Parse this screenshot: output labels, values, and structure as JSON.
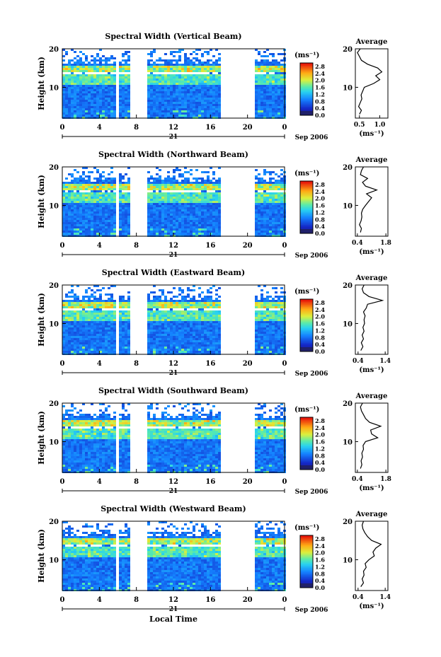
{
  "chart_data": {
    "type": "heatmap",
    "xlabel": "Local Time",
    "date_label": "Sep 2006",
    "day_label": "21",
    "x_ticks": [
      "0",
      "4",
      "8",
      "12",
      "16",
      "20",
      "0"
    ],
    "xlim": [
      0,
      24
    ],
    "ylabel": "Height (km)",
    "ylim": [
      2,
      20
    ],
    "y_ticks": [
      "20",
      "10"
    ],
    "colorbar": {
      "unit": "(ms⁻¹)",
      "ticks": [
        "2.8",
        "2.4",
        "2.0",
        "1.6",
        "1.2",
        "0.8",
        "0.4",
        "0.0"
      ],
      "range": [
        0.0,
        3.0
      ]
    },
    "data_gaps_hours": [
      [
        5.8,
        6.2
      ],
      [
        7.3,
        9.3
      ],
      [
        17.0,
        20.7
      ]
    ],
    "average_title": "Average",
    "average_unit": "(ms⁻¹)",
    "panels": [
      {
        "title": "Spectral Width (Vertical Beam)",
        "avg_xticks": [
          "0.5",
          "1.0"
        ],
        "avg_xlim": [
          0.4,
          1.2
        ],
        "avg_profile": {
          "height": [
            3,
            4,
            5,
            6,
            7,
            8,
            9,
            10,
            11,
            12,
            13,
            14,
            15,
            16,
            17,
            18,
            19,
            20
          ],
          "value": [
            0.5,
            0.55,
            0.48,
            0.52,
            0.56,
            0.54,
            0.58,
            0.62,
            0.85,
            1.0,
            0.9,
            1.05,
            0.95,
            0.7,
            0.55,
            0.5,
            0.45,
            0.52
          ]
        }
      },
      {
        "title": "Spectral Width (Northward Beam)",
        "avg_xticks": [
          "0.4",
          "1.8"
        ],
        "avg_xlim": [
          0.3,
          1.9
        ],
        "avg_profile": {
          "height": [
            3,
            4,
            5,
            6,
            7,
            8,
            9,
            10,
            11,
            12,
            13,
            14,
            15,
            16,
            17,
            18,
            19,
            20
          ],
          "value": [
            0.55,
            0.6,
            0.5,
            0.58,
            0.62,
            0.6,
            0.66,
            0.8,
            0.95,
            1.1,
            0.85,
            1.35,
            0.8,
            0.65,
            0.9,
            0.55,
            0.6,
            0.7
          ]
        }
      },
      {
        "title": "Spectral Width (Eastward Beam)",
        "avg_xticks": [
          "0.4",
          "1.4"
        ],
        "avg_xlim": [
          0.3,
          1.5
        ],
        "avg_profile": {
          "height": [
            3,
            4,
            5,
            6,
            7,
            8,
            9,
            10,
            11,
            12,
            13,
            14,
            15,
            16,
            17,
            18,
            19,
            20
          ],
          "value": [
            0.5,
            0.58,
            0.52,
            0.6,
            0.55,
            0.62,
            0.58,
            0.64,
            0.62,
            0.66,
            0.6,
            0.7,
            0.75,
            1.3,
            0.8,
            0.6,
            0.55,
            0.62
          ]
        }
      },
      {
        "title": "Spectral Width (Southward Beam)",
        "avg_xticks": [
          "0.4",
          "1.8"
        ],
        "avg_xlim": [
          0.3,
          1.9
        ],
        "avg_profile": {
          "height": [
            3,
            4,
            5,
            6,
            7,
            8,
            9,
            10,
            11,
            12,
            13,
            14,
            15,
            16,
            17,
            18,
            19,
            20
          ],
          "value": [
            0.55,
            0.62,
            0.58,
            0.65,
            0.62,
            0.7,
            0.68,
            0.8,
            1.4,
            1.1,
            1.05,
            1.55,
            1.0,
            0.8,
            0.7,
            0.6,
            0.55,
            0.65
          ]
        }
      },
      {
        "title": "Spectral Width (Westward Beam)",
        "avg_xticks": [
          "0.4",
          "1.4"
        ],
        "avg_xlim": [
          0.3,
          1.5
        ],
        "avg_profile": {
          "height": [
            3,
            4,
            5,
            6,
            7,
            8,
            9,
            10,
            11,
            12,
            13,
            14,
            15,
            16,
            17,
            18,
            19,
            20
          ],
          "value": [
            0.5,
            0.6,
            0.55,
            0.62,
            0.6,
            0.7,
            0.66,
            0.8,
            1.0,
            0.95,
            1.05,
            1.25,
            0.9,
            0.75,
            0.65,
            0.58,
            0.55,
            0.6
          ]
        }
      }
    ]
  }
}
